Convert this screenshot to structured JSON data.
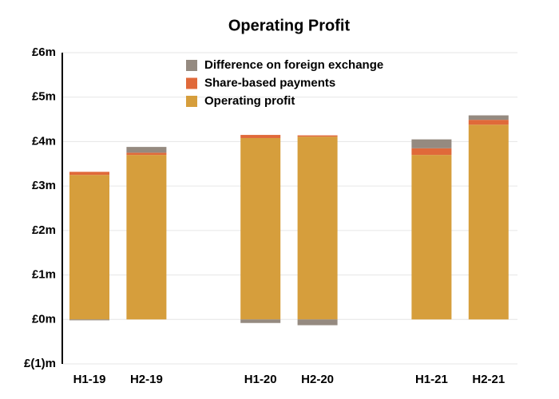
{
  "chart_data": {
    "type": "stacked_bar",
    "title": "Operating Profit",
    "categories": [
      "H1-19",
      "H2-19",
      null,
      "H1-20",
      "H2-20",
      null,
      "H1-21",
      "H2-21"
    ],
    "series": [
      {
        "name": "Operating profit",
        "color": "#d69e3c",
        "values": [
          3.25,
          3.7,
          null,
          4.08,
          4.11,
          null,
          3.7,
          4.38
        ]
      },
      {
        "name": "Share-based payments",
        "color": "#e0693a",
        "values": [
          0.07,
          0.05,
          null,
          0.07,
          0.03,
          null,
          0.15,
          0.11
        ]
      },
      {
        "name": "Difference on foreign exchange",
        "color": "#958a80",
        "values": [
          -0.02,
          0.13,
          null,
          -0.08,
          -0.13,
          null,
          0.2,
          0.1
        ]
      }
    ],
    "ylim": [
      -1,
      6
    ],
    "yticks": [
      {
        "value": -1,
        "label": "£(1)m"
      },
      {
        "value": 0,
        "label": "£0m"
      },
      {
        "value": 1,
        "label": "£1m"
      },
      {
        "value": 2,
        "label": "£2m"
      },
      {
        "value": 3,
        "label": "£3m"
      },
      {
        "value": 4,
        "label": "£4m"
      },
      {
        "value": 5,
        "label": "£5m"
      },
      {
        "value": 6,
        "label": "£6m"
      }
    ],
    "grid": true,
    "legend": "top"
  }
}
